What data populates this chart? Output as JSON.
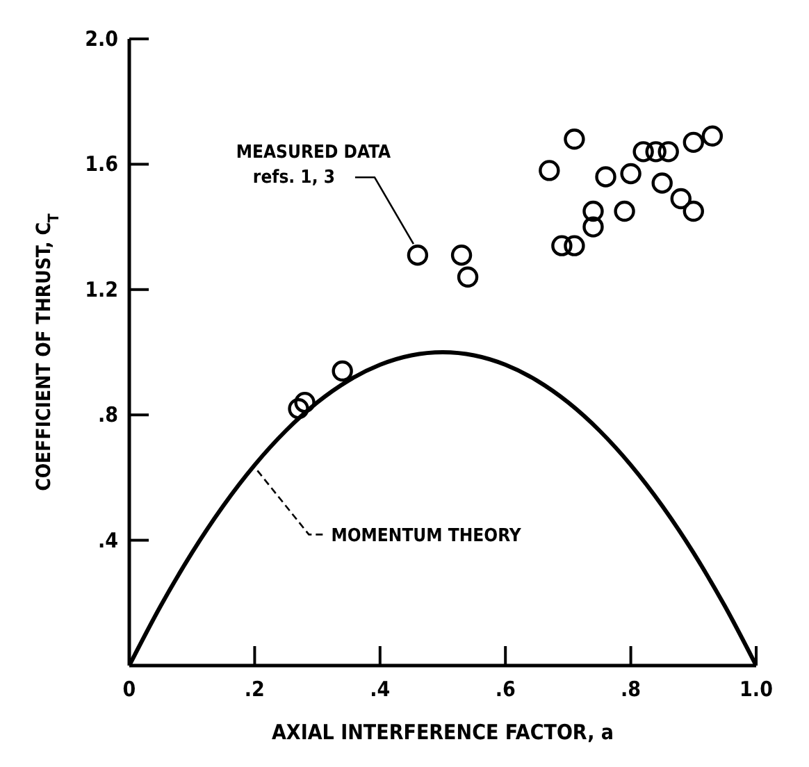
{
  "chart_data": {
    "type": "scatter",
    "xlabel": "AXIAL INTERFERENCE FACTOR, a",
    "ylabel": "COEFFICIENT OF THRUST, C$_{T}$",
    "xlim": [
      0,
      1.0
    ],
    "xticks": [
      {
        "value": 0,
        "label": "0"
      },
      {
        "value": 0.2,
        "label": ".2"
      },
      {
        "value": 0.4,
        "label": ".4"
      },
      {
        "value": 0.6,
        "label": ".6"
      },
      {
        "value": 0.8,
        "label": ".8"
      },
      {
        "value": 1.0,
        "label": "1.0"
      }
    ],
    "ylim": [
      0,
      2.0
    ],
    "yticks": [
      {
        "value": 0,
        "label": null
      },
      {
        "value": 0.4,
        "label": ".4"
      },
      {
        "value": 0.8,
        "label": ".8"
      },
      {
        "value": 1.2,
        "label": "1.2"
      },
      {
        "value": 1.6,
        "label": "1.6"
      },
      {
        "value": 2.0,
        "label": "2.0"
      }
    ],
    "grid": false,
    "legend": false,
    "series": [
      {
        "color": "#000000",
        "marker": "circle",
        "x": [
          0.27,
          0.28,
          0.34,
          0.46,
          0.53,
          0.54,
          0.67,
          0.71,
          0.69,
          0.71,
          0.74,
          0.74,
          0.76,
          0.79,
          0.8,
          0.82,
          0.84,
          0.86,
          0.85,
          0.88,
          0.9,
          0.9,
          0.93
        ],
        "values": [
          0.82,
          0.84,
          0.94,
          1.31,
          1.31,
          1.24,
          1.58,
          1.68,
          1.34,
          1.34,
          1.45,
          1.4,
          1.56,
          1.45,
          1.57,
          1.64,
          1.64,
          1.64,
          1.54,
          1.49,
          1.45,
          1.67,
          1.69
        ]
      },
      {
        "type": "line",
        "color": "#000000",
        "marker": "none",
        "line_style": "solid",
        "x": [
          0,
          0.05,
          0.1,
          0.15,
          0.2,
          0.25,
          0.3,
          0.35,
          0.4,
          0.45,
          0.5,
          0.55,
          0.6,
          0.65,
          0.7,
          0.75,
          0.8,
          0.85,
          0.9,
          0.95,
          1.0
        ],
        "values": [
          0,
          0.19,
          0.36,
          0.51,
          0.64,
          0.75,
          0.84,
          0.91,
          0.96,
          0.99,
          1.0,
          0.99,
          0.96,
          0.91,
          0.84,
          0.75,
          0.64,
          0.51,
          0.36,
          0.19,
          0
        ]
      }
    ],
    "annotations": [
      {
        "text": "MEASURED DATA refs. 1, 3",
        "x": 0.46,
        "y": 1.31
      },
      {
        "text": "MOMENTUM THEORY",
        "x": 0.2,
        "y": 0.64
      }
    ]
  }
}
